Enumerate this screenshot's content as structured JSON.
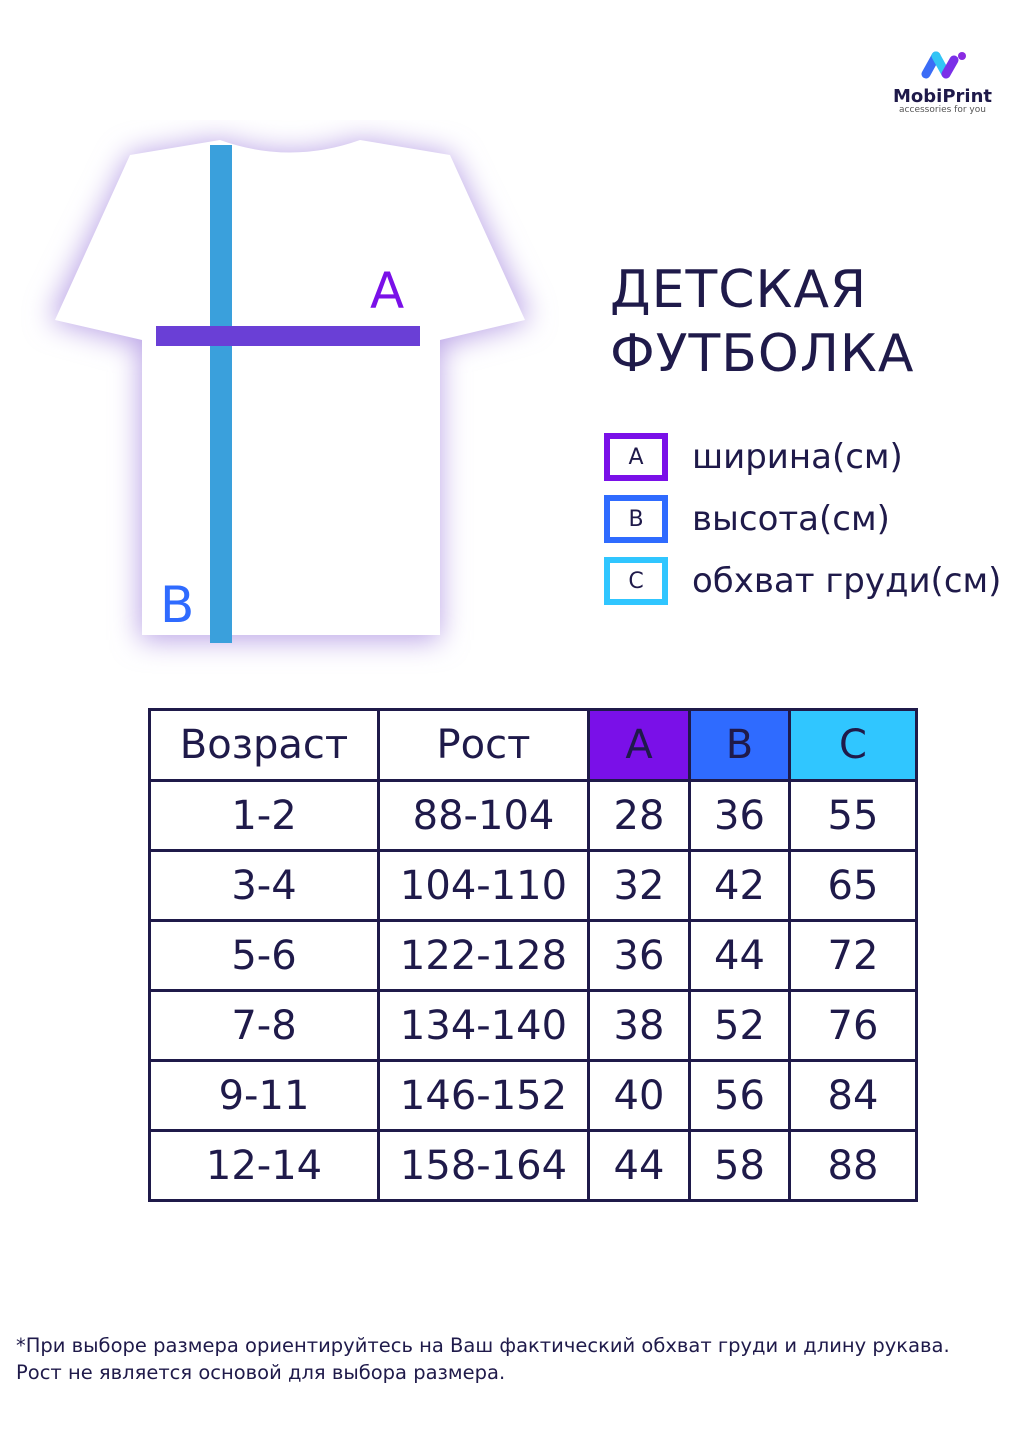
{
  "brand": {
    "name": "MobiPrint",
    "tagline": "accessories for you"
  },
  "title": [
    "ДЕТСКАЯ",
    "ФУТБОЛКА"
  ],
  "shirt_labels": {
    "a": "A",
    "b": "B"
  },
  "legend": [
    {
      "key": "A",
      "label": "ширина(см)",
      "color": "#7a10e8"
    },
    {
      "key": "B",
      "label": "высота(см)",
      "color": "#2f6bff"
    },
    {
      "key": "C",
      "label": "обхват груди(см)",
      "color": "#30c6ff"
    }
  ],
  "table": {
    "headers": [
      "Возраст",
      "Рост",
      "A",
      "B",
      "C"
    ],
    "header_colors": [
      "#ffffff",
      "#ffffff",
      "#7a10e8",
      "#2f6bff",
      "#30c6ff"
    ],
    "rows": [
      [
        "1-2",
        "88-104",
        "28",
        "36",
        "55"
      ],
      [
        "3-4",
        "104-110",
        "32",
        "42",
        "65"
      ],
      [
        "5-6",
        "122-128",
        "36",
        "44",
        "72"
      ],
      [
        "7-8",
        "134-140",
        "38",
        "52",
        "76"
      ],
      [
        "9-11",
        "146-152",
        "40",
        "56",
        "84"
      ],
      [
        "12-14",
        "158-164",
        "44",
        "58",
        "88"
      ]
    ]
  },
  "note": [
    "*При выборе размера ориентируйтесь на Ваш фактический обхват груди и длину рукава.",
    "Рост не является основой для выбора размера."
  ]
}
